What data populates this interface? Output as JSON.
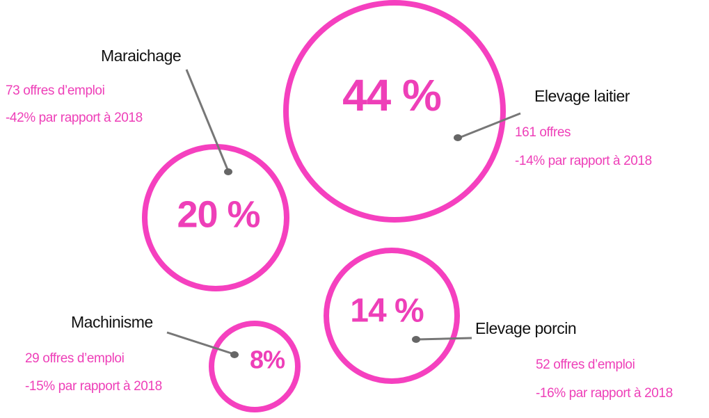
{
  "items": [
    {
      "name": "Maraichage",
      "percent": "20 %",
      "offers": "73 offres d’emploi",
      "change": "-42% par rapport à 2018"
    },
    {
      "name": "Elevage laitier",
      "percent": "44 %",
      "offers": "161 offres",
      "change": "-14% par rapport à 2018"
    },
    {
      "name": "Machinisme",
      "percent": "8%",
      "offers": "29 offres d’emploi",
      "change": "-15% par rapport à 2018"
    },
    {
      "name": "Elevage porcin",
      "percent": "14 %",
      "offers": "52 offres d’emploi",
      "change": "-16% par rapport à 2018"
    }
  ]
}
